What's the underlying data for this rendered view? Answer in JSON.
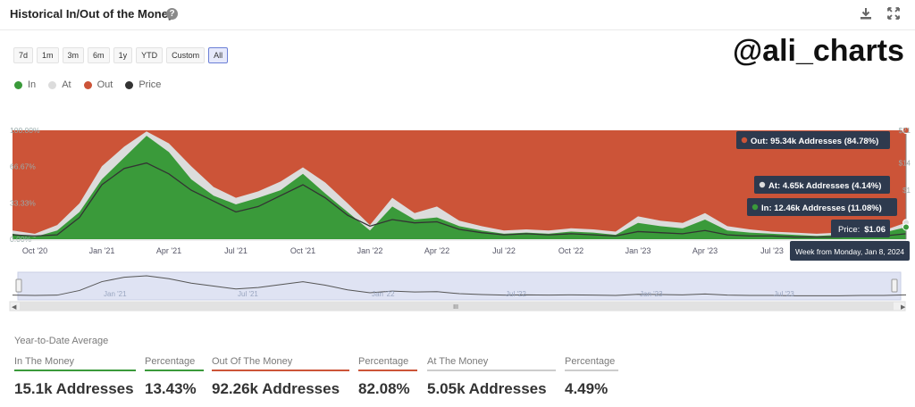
{
  "header": {
    "title": "Historical In/Out of the Money",
    "help_icon": "question-circle-icon",
    "download_icon": "download-icon",
    "expand_icon": "expand-icon"
  },
  "watermark": "@ali_charts",
  "range_buttons": [
    "7d",
    "1m",
    "3m",
    "6m",
    "1y",
    "YTD",
    "Custom",
    "All"
  ],
  "active_range": "All",
  "colors": {
    "in": "#3a9a3a",
    "at": "#dcdcdc",
    "out": "#cc5438",
    "price": "#333333",
    "tooltip_bg": "#2e3a4e",
    "navigator_bg": "#dfe3f3"
  },
  "chart_data": {
    "type": "area",
    "title": "Historical In/Out of the Money",
    "legend": [
      "In",
      "At",
      "Out",
      "Price"
    ],
    "legend_placement": "top-left",
    "y_ticks_left": [
      "0.00%",
      "33.33%",
      "66.67%",
      "100.00%"
    ],
    "y_right_ticks_partial": [
      "$21",
      "$14",
      "$1"
    ],
    "ylim": [
      0,
      100
    ],
    "x_ticks": [
      "Oct '20",
      "Jan '21",
      "Apr '21",
      "Jul '21",
      "Oct '21",
      "Jan '22",
      "Apr '22",
      "Jul '22",
      "Oct '22",
      "Jan '23",
      "Apr '23",
      "Jul '23"
    ],
    "x": [
      "2020-09",
      "2020-10",
      "2020-11",
      "2020-12",
      "2021-01",
      "2021-02",
      "2021-03",
      "2021-04",
      "2021-05",
      "2021-06",
      "2021-07",
      "2021-08",
      "2021-09",
      "2021-10",
      "2021-11",
      "2021-12",
      "2022-01",
      "2022-02",
      "2022-03",
      "2022-04",
      "2022-05",
      "2022-06",
      "2022-07",
      "2022-08",
      "2022-09",
      "2022-10",
      "2022-11",
      "2022-12",
      "2023-01",
      "2023-02",
      "2023-03",
      "2023-04",
      "2023-05",
      "2023-06",
      "2023-07",
      "2023-08",
      "2023-09",
      "2023-10",
      "2023-11",
      "2023-12",
      "2024-01"
    ],
    "series": [
      {
        "name": "In",
        "values": [
          5,
          2,
          8,
          25,
          55,
          75,
          95,
          80,
          55,
          40,
          32,
          38,
          45,
          60,
          42,
          25,
          8,
          30,
          18,
          20,
          12,
          8,
          5,
          6,
          5,
          7,
          6,
          4,
          15,
          12,
          10,
          18,
          8,
          6,
          5,
          4,
          3,
          4,
          5,
          6,
          11.08
        ]
      },
      {
        "name": "At",
        "values": [
          3,
          3,
          5,
          8,
          12,
          10,
          4,
          8,
          12,
          8,
          6,
          6,
          8,
          6,
          10,
          8,
          5,
          8,
          6,
          10,
          5,
          4,
          3,
          3,
          3,
          3,
          3,
          3,
          6,
          5,
          5,
          6,
          4,
          3,
          2,
          2,
          2,
          2,
          2,
          2,
          4.14
        ]
      },
      {
        "name": "Out",
        "values": [
          92,
          95,
          87,
          67,
          33,
          15,
          1,
          12,
          33,
          52,
          62,
          56,
          47,
          34,
          48,
          67,
          87,
          62,
          76,
          70,
          83,
          88,
          92,
          91,
          92,
          90,
          91,
          93,
          79,
          83,
          85,
          76,
          88,
          91,
          93,
          94,
          95,
          94,
          93,
          92,
          84.78
        ]
      },
      {
        "name": "Price",
        "values": [
          4,
          3,
          4,
          20,
          50,
          65,
          70,
          60,
          45,
          35,
          25,
          30,
          40,
          50,
          38,
          22,
          12,
          18,
          15,
          16,
          9,
          6,
          4,
          5,
          4,
          5,
          4,
          3,
          7,
          6,
          5,
          8,
          4,
          3,
          3,
          2,
          2,
          2,
          3,
          3,
          5
        ]
      }
    ],
    "tooltip": {
      "out": "Out: 95.34k Addresses (84.78%)",
      "at": "At: 4.65k Addresses (4.14%)",
      "in": "In: 12.46k Addresses (11.08%)",
      "price_label": "Price:",
      "price_value": "$1.06",
      "date": "Week from Monday, Jan 8, 2024"
    },
    "navigator_ticks": [
      "Jan '21",
      "Jul '21",
      "Jan '22",
      "Jul '22",
      "Jan '23",
      "Jul '23"
    ],
    "scrollbar_grip": "III"
  },
  "ytd": {
    "title": "Year-to-Date Average",
    "stats": [
      {
        "label": "In The Money",
        "value": "15.1k Addresses",
        "color": "#3a9a3a"
      },
      {
        "label": "Percentage",
        "value": "13.43%",
        "color": "#3a9a3a"
      },
      {
        "label": "Out Of The Money",
        "value": "92.26k Addresses",
        "color": "#cc5438"
      },
      {
        "label": "Percentage",
        "value": "82.08%",
        "color": "#cc5438"
      },
      {
        "label": "At The Money",
        "value": "5.05k Addresses",
        "color": "#cccccc"
      },
      {
        "label": "Percentage",
        "value": "4.49%",
        "color": "#cccccc"
      }
    ]
  }
}
